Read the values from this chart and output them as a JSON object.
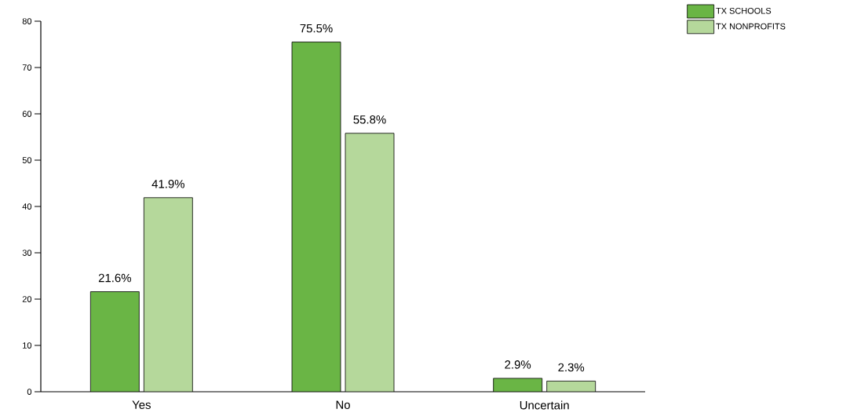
{
  "chart_data": {
    "type": "bar",
    "categories": [
      "Yes",
      "No",
      "Uncertain"
    ],
    "series": [
      {
        "name": "TX SCHOOLS",
        "color": "#6ab545",
        "values": [
          21.6,
          75.5,
          2.9
        ],
        "value_labels": [
          "21.6%",
          "75.5%",
          "2.9%"
        ]
      },
      {
        "name": "TX NONPROFITS",
        "color": "#b5d89b",
        "values": [
          41.9,
          55.8,
          2.3
        ],
        "value_labels": [
          "41.9%",
          "55.8%",
          "2.3%"
        ]
      }
    ],
    "ylim": [
      0,
      80
    ],
    "yticks": [
      0,
      10,
      20,
      30,
      40,
      50,
      60,
      70,
      80
    ],
    "grid": false,
    "legend": "top right"
  }
}
